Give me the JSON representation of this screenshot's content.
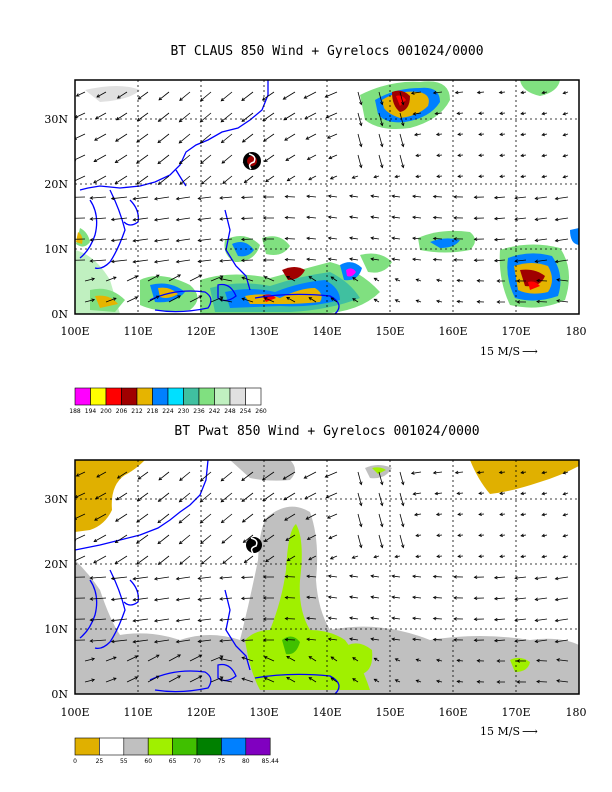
{
  "chart_data": [
    {
      "type": "heatmap",
      "title": "BT CLAUS 850 Wind + Gyrelocs 001024/0000",
      "x_ticks": [
        "100E",
        "110E",
        "120E",
        "130E",
        "140E",
        "150E",
        "160E",
        "170E",
        "180"
      ],
      "y_ticks": [
        "0N",
        "10N",
        "20N",
        "30N"
      ],
      "xlim": [
        100,
        180
      ],
      "ylim": [
        0,
        36
      ],
      "grid": true,
      "vector_reference": {
        "label": "15 M/S",
        "arrow": "⟶"
      },
      "colorbar": {
        "labels": [
          "188",
          "194",
          "200",
          "206",
          "212",
          "218",
          "224",
          "230",
          "236",
          "242",
          "248",
          "254",
          "260"
        ],
        "colors": [
          "#ff00ff",
          "#ffff00",
          "#ff0000",
          "#a00000",
          "#e6b400",
          "#0080ff",
          "#00e0ff",
          "#40c0a0",
          "#80e080",
          "#c0f0c0",
          "#e0e0e0",
          "#ffffff"
        ]
      },
      "gyre_marker_location": {
        "lon": 127.5,
        "lat": 23
      }
    },
    {
      "type": "heatmap",
      "title": "BT Pwat 850 Wind + Gyrelocs 001024/0000",
      "x_ticks": [
        "100E",
        "110E",
        "120E",
        "130E",
        "140E",
        "150E",
        "160E",
        "170E",
        "180"
      ],
      "y_ticks": [
        "0N",
        "10N",
        "20N",
        "30N"
      ],
      "xlim": [
        100,
        180
      ],
      "ylim": [
        0,
        36
      ],
      "grid": true,
      "vector_reference": {
        "label": "15 M/S",
        "arrow": "⟶"
      },
      "colorbar": {
        "labels": [
          "0",
          "25",
          "55",
          "60",
          "65",
          "70",
          "75",
          "80",
          "85.44"
        ],
        "colors": [
          "#e0b000",
          "#ffffff",
          "#c0c0c0",
          "#a0f000",
          "#40c000",
          "#008000",
          "#0080ff",
          "#8000c0"
        ]
      },
      "gyre_marker_location": {
        "lon": 127.5,
        "lat": 23
      }
    }
  ]
}
